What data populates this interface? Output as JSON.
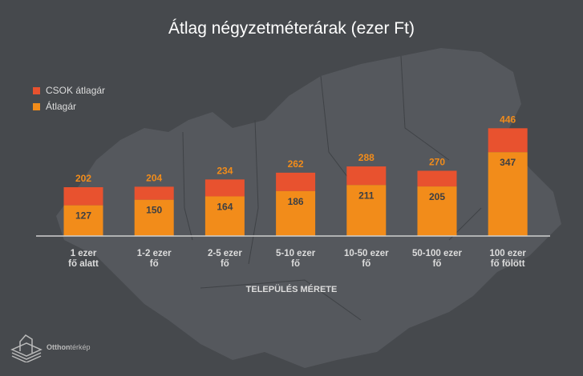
{
  "chart_data": {
    "type": "bar",
    "title": "Átlag négyzetméterárak (ezer Ft)",
    "xlabel": "TELEPÜLÉS MÉRETE",
    "categories": [
      [
        "1 ezer",
        "fő alatt"
      ],
      [
        "1-2 ezer",
        "fő"
      ],
      [
        "2-5 ezer",
        "fő"
      ],
      [
        "5-10 ezer",
        "fő"
      ],
      [
        "10-50 ezer",
        "fő"
      ],
      [
        "50-100 ezer",
        "fő"
      ],
      [
        "100 ezer",
        "fő fölött"
      ]
    ],
    "series": [
      {
        "name": "Átlagár",
        "color": "#f28c1a",
        "values": [
          127,
          150,
          164,
          186,
          211,
          205,
          347
        ]
      },
      {
        "name": "CSOK átlagár",
        "color": "#e8522f",
        "values": [
          202,
          204,
          234,
          262,
          288,
          270,
          446
        ]
      }
    ],
    "ylim": [
      0,
      460
    ],
    "legend": "top-left"
  },
  "logo": {
    "text_bold": "Otthon",
    "text_light": "térkép"
  }
}
